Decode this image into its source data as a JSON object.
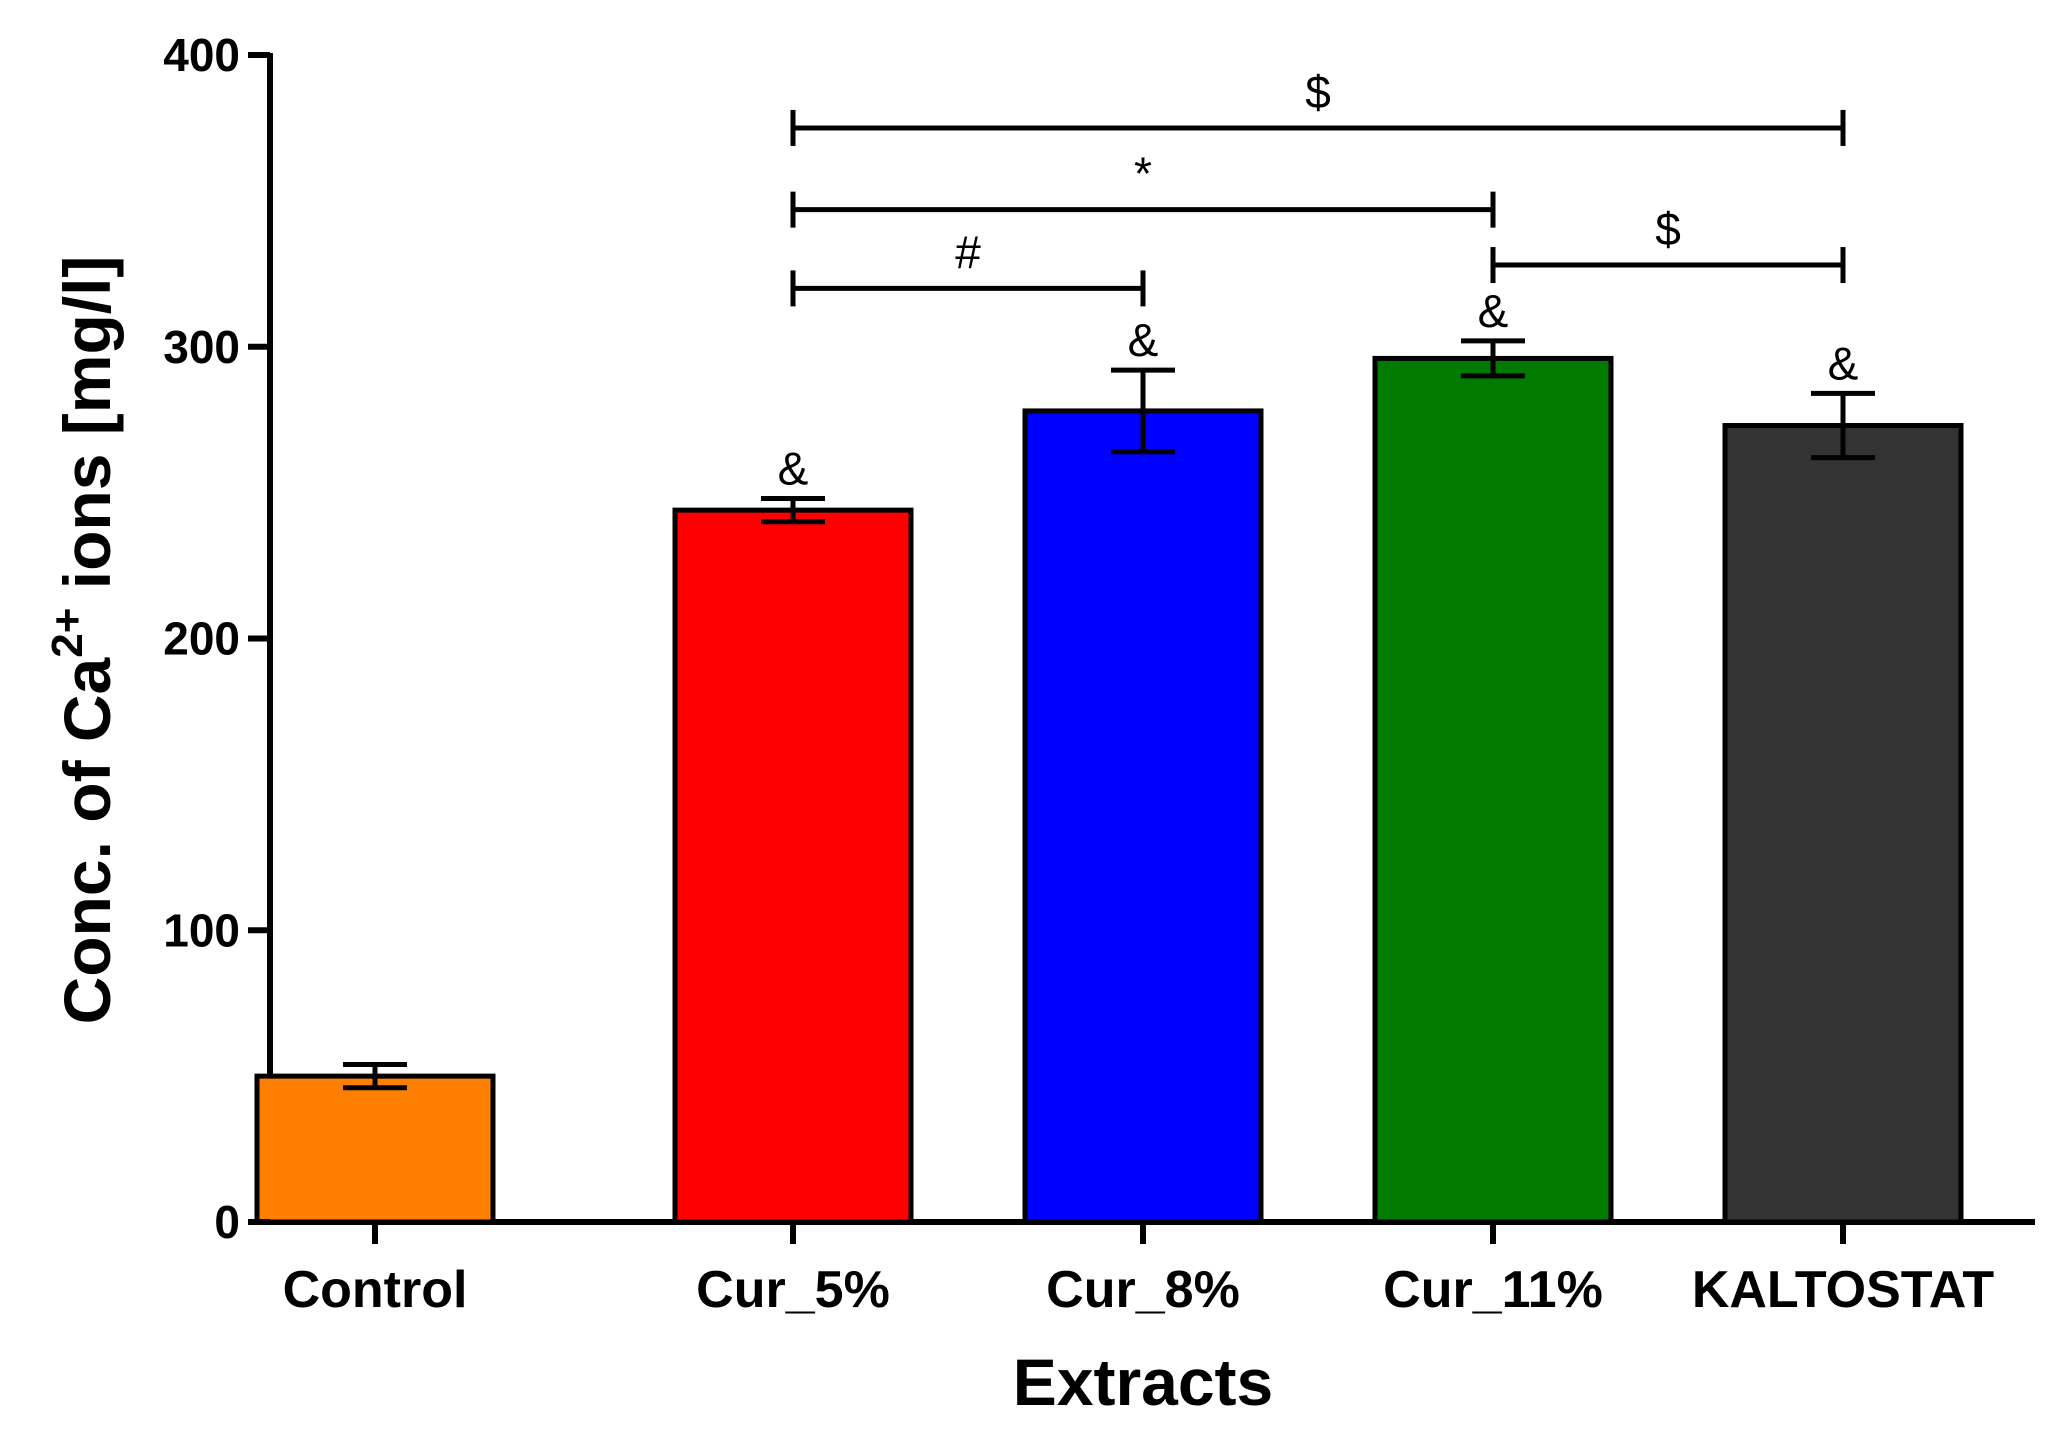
{
  "chart_data": {
    "type": "bar",
    "title": "",
    "xlabel": "Extracts",
    "ylabel": "Conc. of Ca",
    "ylabel_superscript": "2+",
    "ylabel_suffix": " ions [mg/l]",
    "ylim": [
      0,
      400
    ],
    "yticks": [
      0,
      100,
      200,
      300,
      400
    ],
    "ytick_labels": [
      "0",
      "100",
      "200",
      "300",
      "400"
    ],
    "categories": [
      "Control",
      "Cur_5%",
      "Cur_8%",
      "Cur_11%",
      "KALTOSTAT"
    ],
    "values": [
      50,
      244,
      278,
      296,
      273
    ],
    "errors": [
      4,
      4,
      14,
      6,
      11
    ],
    "colors": [
      "#ff8000",
      "#ff0000",
      "#0000ff",
      "#007a00",
      "#333333"
    ],
    "bar_markers": [
      "",
      "&",
      "&",
      "&",
      "&"
    ],
    "comparisons": [
      {
        "from": 1,
        "to": 4,
        "y": 375,
        "label": "$"
      },
      {
        "from": 1,
        "to": 3,
        "y": 347,
        "label": "*"
      },
      {
        "from": 1,
        "to": 2,
        "y": 320,
        "label": "#"
      },
      {
        "from": 3,
        "to": 4,
        "y": 328,
        "label": "$"
      }
    ],
    "grid": false,
    "legend": "none"
  }
}
